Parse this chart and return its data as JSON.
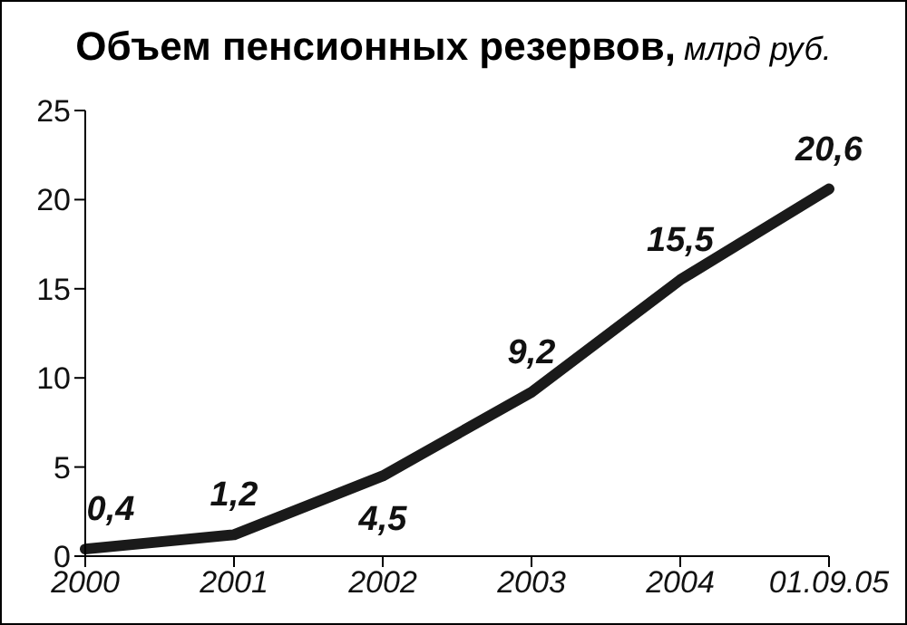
{
  "chart_data": {
    "type": "line",
    "title": "Объем пенсионных резервов,",
    "subtitle": "млрд руб.",
    "categories": [
      "2000",
      "2001",
      "2002",
      "2003",
      "2004",
      "01.09.05"
    ],
    "series": [
      {
        "color": "#1a1a1a",
        "values": [
          0.4,
          1.2,
          4.5,
          9.2,
          15.5,
          20.6
        ],
        "value_labels": [
          "0,4",
          "1,2",
          "4,5",
          "9,2",
          "15,5",
          "20,6"
        ]
      }
    ],
    "ylim": [
      0,
      25
    ],
    "yticks": [
      0,
      5,
      10,
      15,
      20,
      25
    ],
    "grid": false,
    "legend": false,
    "marker": "none",
    "line_style": "solid"
  }
}
